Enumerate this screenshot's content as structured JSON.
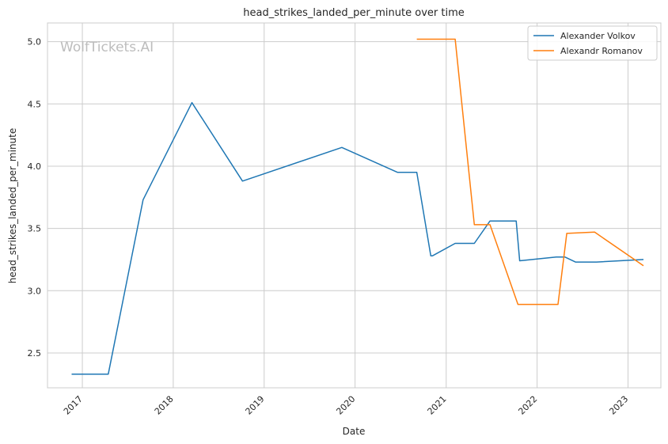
{
  "watermark": "WolfTickets.AI",
  "chart_data": {
    "type": "line",
    "title": "head_strikes_landed_per_minute over time",
    "xlabel": "Date",
    "ylabel": "head_strikes_landed_per_minute",
    "xlim": [
      "2016-08-14",
      "2023-05-13"
    ],
    "ylim": [
      2.22,
      5.15
    ],
    "x_ticks": [
      "2017",
      "2018",
      "2019",
      "2020",
      "2021",
      "2022",
      "2023"
    ],
    "x_tick_dates": [
      "2017-01-01",
      "2018-01-01",
      "2019-01-01",
      "2020-01-01",
      "2021-01-01",
      "2022-01-01",
      "2023-01-01"
    ],
    "y_ticks": [
      "2.5",
      "3.0",
      "3.5",
      "4.0",
      "4.5",
      "5.0"
    ],
    "y_tick_values": [
      2.5,
      3.0,
      3.5,
      4.0,
      4.5,
      5.0
    ],
    "grid": true,
    "legend_position": "top-right",
    "series": [
      {
        "name": "Alexander Volkov",
        "color": "#1f77b4",
        "x": [
          "2016-11-19",
          "2017-04-15",
          "2017-09-02",
          "2018-03-17",
          "2018-10-06",
          "2019-11-09",
          "2020-06-20",
          "2020-09-05",
          "2020-10-31",
          "2020-11-07",
          "2021-02-06",
          "2021-04-24",
          "2021-06-26",
          "2021-10-09",
          "2021-10-23",
          "2022-03-19",
          "2022-04-23",
          "2022-06-04",
          "2022-08-27",
          "2023-03-04"
        ],
        "y": [
          2.33,
          2.33,
          3.73,
          4.51,
          3.88,
          4.15,
          3.95,
          3.95,
          3.28,
          3.28,
          3.38,
          3.38,
          3.56,
          3.56,
          3.24,
          3.27,
          3.27,
          3.23,
          3.23,
          3.25
        ]
      },
      {
        "name": "Alexandr Romanov",
        "color": "#ff7f0e",
        "x": [
          "2020-09-05",
          "2021-02-06",
          "2021-04-24",
          "2021-06-26",
          "2021-10-16",
          "2022-03-26",
          "2022-04-30",
          "2022-08-20",
          "2023-03-04"
        ],
        "y": [
          5.02,
          5.02,
          3.53,
          3.53,
          2.89,
          2.89,
          3.46,
          3.47,
          3.2
        ]
      }
    ]
  }
}
